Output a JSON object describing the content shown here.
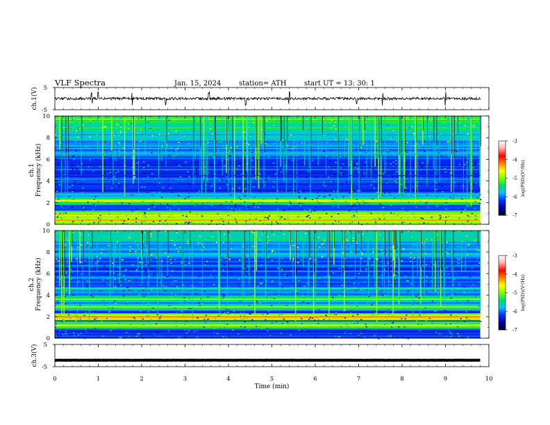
{
  "header": {
    "title": "VLF  Spectra",
    "date": "Jan.  15,  2024",
    "station": "station= ATH",
    "start": "start  UT  =    13: 30: 1"
  },
  "chart_data": [
    {
      "id": "ch1-waveform",
      "type": "line",
      "ylabel": "ch.1(V)",
      "ylim": [
        -5,
        5
      ],
      "yticks": [
        "5",
        "-5"
      ],
      "xlim": [
        0,
        10
      ],
      "baseline": 0,
      "noise_amplitude": 0.6,
      "spike_times_min": [
        0.85,
        1.0,
        1.78,
        2.55,
        3.55,
        4.4,
        5.4,
        6.95,
        7.55,
        9.0
      ],
      "data_end_min": 9.8,
      "color": "#000000"
    },
    {
      "id": "ch1-spectrogram",
      "type": "heatmap",
      "ylabel_top": "ch.1",
      "ylabel": "Frequency  (kHz)",
      "ylim": [
        0,
        10
      ],
      "yticks": [
        "0",
        "2",
        "4",
        "6",
        "8",
        "10"
      ],
      "xlim": [
        0,
        10
      ],
      "data_end_min": 9.8,
      "background_log_psd": -6.2,
      "high_freq_log_psd": -5.2,
      "bands": [
        {
          "freq_khz": 0.4,
          "log_psd": -4.6
        },
        {
          "freq_khz": 0.9,
          "log_psd": -4.8
        },
        {
          "freq_khz": 2.2,
          "log_psd": -5.0
        },
        {
          "freq_khz": 2.8,
          "log_psd": -5.8
        },
        {
          "freq_khz": 4.5,
          "log_psd": -6.6
        },
        {
          "freq_khz": 6.5,
          "log_psd": -5.9
        }
      ],
      "sferic_count": 120,
      "colorbar": {
        "label": "log(PSD)(V²/Hz)",
        "ticks": [
          "-3",
          "-4",
          "-5",
          "-6",
          "-7"
        ],
        "range": [
          -7,
          -3
        ]
      }
    },
    {
      "id": "ch2-spectrogram",
      "type": "heatmap",
      "ylabel_top": "ch.2",
      "ylabel": "Frequency  (kHz)",
      "ylim": [
        0,
        10
      ],
      "yticks": [
        "0",
        "2",
        "4",
        "6",
        "8",
        "10"
      ],
      "xlim": [
        0,
        10
      ],
      "data_end_min": 9.8,
      "background_log_psd": -6.1,
      "high_freq_log_psd": -5.6,
      "bands": [
        {
          "freq_khz": 1.2,
          "log_psd": -5.0
        },
        {
          "freq_khz": 2.0,
          "log_psd": -4.5
        },
        {
          "freq_khz": 2.9,
          "log_psd": -5.2
        },
        {
          "freq_khz": 3.6,
          "log_psd": -5.3
        },
        {
          "freq_khz": 4.6,
          "log_psd": -5.6
        }
      ],
      "sferic_count": 110,
      "colorbar": {
        "label": "log(PSD)(V²/Hz)",
        "ticks": [
          "-3",
          "-4",
          "-5",
          "-6",
          "-7"
        ],
        "range": [
          -7,
          -3
        ]
      }
    },
    {
      "id": "ch3-waveform",
      "type": "line",
      "ylabel": "ch.3(V)",
      "ylim": [
        -5,
        5
      ],
      "yticks": [
        "5",
        "-5"
      ],
      "xlim": [
        0,
        10
      ],
      "baseline": -2.1,
      "noise_amplitude": 0.05,
      "data_end_min": 9.8,
      "color": "#000000"
    }
  ],
  "xaxis": {
    "label": "Time  (min)",
    "ticks": [
      "0",
      "1",
      "2",
      "3",
      "4",
      "5",
      "6",
      "7",
      "8",
      "9",
      "10"
    ]
  },
  "colorscale": [
    "#000020",
    "#0000a0",
    "#0030ff",
    "#00c0ff",
    "#00e060",
    "#80ff00",
    "#ffff00",
    "#ff8000",
    "#ff0000",
    "#ffb0b0",
    "#ffffff"
  ]
}
